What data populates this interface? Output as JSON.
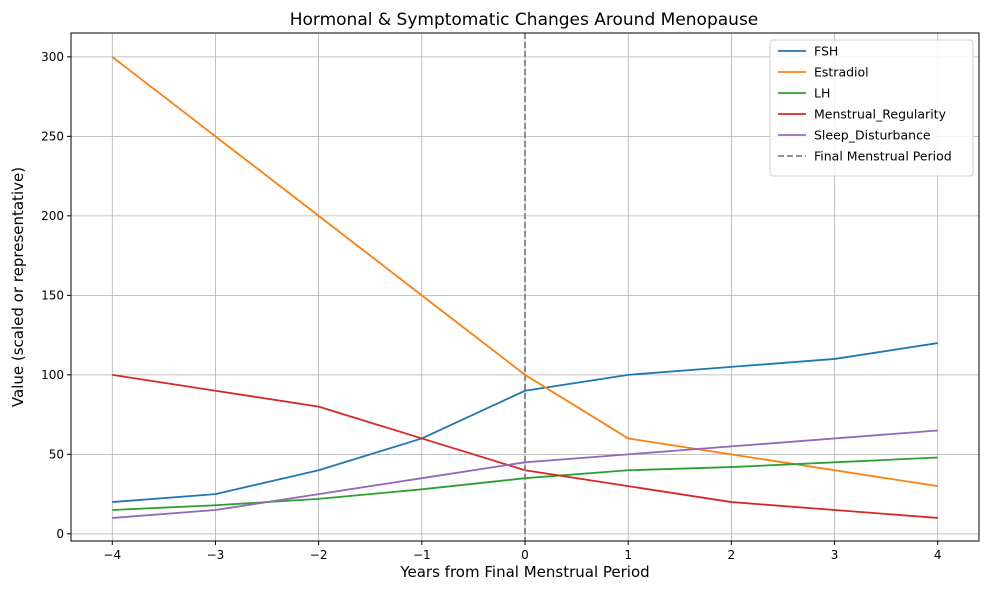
{
  "chart_data": {
    "type": "line",
    "title": "Hormonal & Symptomatic Changes Around Menopause",
    "xlabel": "Years from Final Menstrual Period",
    "ylabel": "Value (scaled or representative)",
    "x": [
      -4,
      -3,
      -2,
      -1,
      0,
      1,
      2,
      3,
      4
    ],
    "xlim": [
      -4.4,
      4.4
    ],
    "ylim": [
      -4.5,
      315
    ],
    "xticks": [
      -4,
      -3,
      -2,
      -1,
      0,
      1,
      2,
      3,
      4
    ],
    "xtick_labels": [
      "−4",
      "−3",
      "−2",
      "−1",
      "0",
      "1",
      "2",
      "3",
      "4"
    ],
    "yticks": [
      0,
      50,
      100,
      150,
      200,
      250,
      300
    ],
    "ytick_labels": [
      "0",
      "50",
      "100",
      "150",
      "200",
      "250",
      "300"
    ],
    "grid": true,
    "legend_position": "top-right",
    "series": [
      {
        "name": "FSH",
        "color": "#1f77b4",
        "values": [
          20,
          25,
          40,
          60,
          90,
          100,
          105,
          110,
          120
        ]
      },
      {
        "name": "Estradiol",
        "color": "#ff7f0e",
        "values": [
          300,
          250,
          200,
          150,
          100,
          60,
          50,
          40,
          30
        ]
      },
      {
        "name": "LH",
        "color": "#2ca02c",
        "values": [
          15,
          18,
          22,
          28,
          35,
          40,
          42,
          45,
          48
        ]
      },
      {
        "name": "Menstrual_Regularity",
        "color": "#d62728",
        "values": [
          100,
          90,
          80,
          60,
          40,
          30,
          20,
          15,
          10
        ]
      },
      {
        "name": "Sleep_Disturbance",
        "color": "#9467bd",
        "values": [
          10,
          15,
          25,
          35,
          45,
          50,
          55,
          60,
          65
        ]
      }
    ],
    "reference_line": {
      "name": "Final Menstrual Period",
      "x": 0,
      "color": "#808080",
      "style": "dashed"
    }
  }
}
